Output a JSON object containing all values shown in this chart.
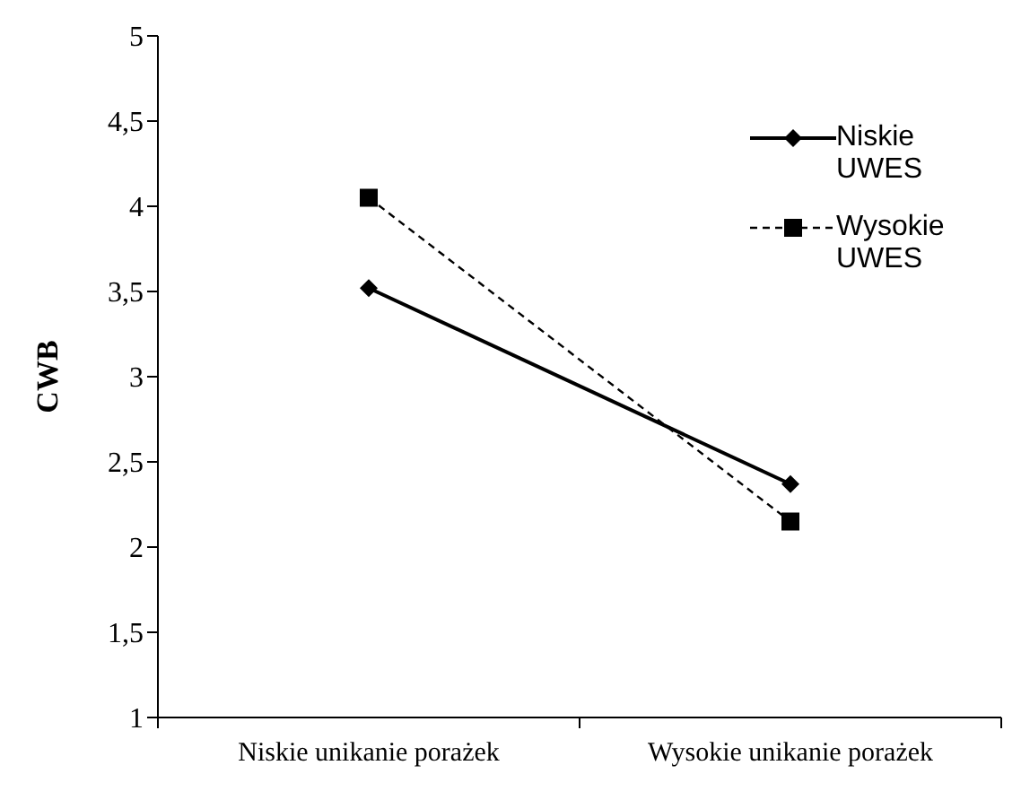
{
  "chart_data": {
    "type": "line",
    "ylabel": "CWB",
    "categories": [
      "Niskie unikanie porażek",
      "Wysokie unikanie porażek"
    ],
    "series": [
      {
        "name": "Niskie UWES",
        "color": "#000000",
        "values": [
          3.52,
          2.37
        ],
        "marker": "diamond",
        "line_style": "solid"
      },
      {
        "name": "Wysokie UWES",
        "color": "#000000",
        "values": [
          4.05,
          2.15
        ],
        "marker": "square",
        "line_style": "dashed"
      }
    ],
    "ylim": [
      1,
      5
    ],
    "yticks": [
      1,
      {
        "value": 1.5,
        "label": "1,5"
      },
      2,
      {
        "value": 2.5,
        "label": "2,5"
      },
      3,
      {
        "value": 3.5,
        "label": "3,5"
      },
      4,
      {
        "value": 4.5,
        "label": "4,5"
      },
      5
    ],
    "grid": false,
    "legend": "top right"
  }
}
